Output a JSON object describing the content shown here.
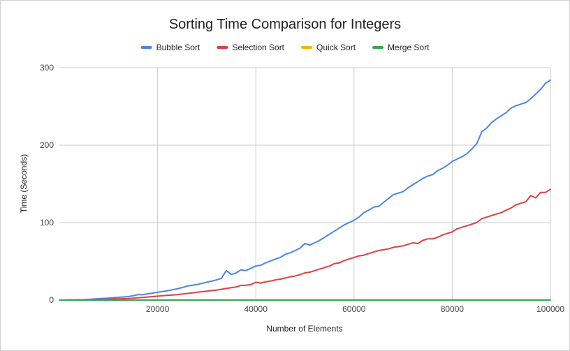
{
  "chart_data": {
    "type": "line",
    "title": "Sorting Time Comparison for Integers",
    "xlabel": "Number of Elements",
    "ylabel": "Time (Seconds)",
    "xlim": [
      0,
      100000
    ],
    "ylim": [
      0,
      300
    ],
    "xticks": [
      20000,
      40000,
      60000,
      80000,
      100000
    ],
    "yticks": [
      0,
      100,
      200,
      300
    ],
    "grid": true,
    "legend_position": "top",
    "series": [
      {
        "name": "Bubble Sort",
        "color": "#4a86e8",
        "points": [
          [
            0,
            0
          ],
          [
            5000,
            0.5
          ],
          [
            8000,
            1.8
          ],
          [
            10000,
            2.5
          ],
          [
            12000,
            3.5
          ],
          [
            14000,
            4.5
          ],
          [
            15000,
            5.5
          ],
          [
            16000,
            7
          ],
          [
            17000,
            7
          ],
          [
            18000,
            8
          ],
          [
            20000,
            10
          ],
          [
            22000,
            12
          ],
          [
            24000,
            14.5
          ],
          [
            25000,
            16
          ],
          [
            26000,
            18
          ],
          [
            27000,
            19
          ],
          [
            28000,
            20
          ],
          [
            30000,
            23
          ],
          [
            32000,
            26
          ],
          [
            33000,
            28
          ],
          [
            34000,
            38
          ],
          [
            35000,
            33
          ],
          [
            36000,
            35
          ],
          [
            37000,
            39
          ],
          [
            38000,
            38
          ],
          [
            40000,
            44
          ],
          [
            41000,
            45
          ],
          [
            42000,
            48
          ],
          [
            44000,
            53
          ],
          [
            45000,
            55
          ],
          [
            46000,
            59
          ],
          [
            47000,
            61
          ],
          [
            48000,
            64
          ],
          [
            49000,
            67
          ],
          [
            50000,
            73
          ],
          [
            51000,
            71
          ],
          [
            52000,
            74
          ],
          [
            53000,
            77
          ],
          [
            54000,
            81
          ],
          [
            55000,
            85
          ],
          [
            56000,
            89
          ],
          [
            57000,
            93
          ],
          [
            58000,
            97
          ],
          [
            59000,
            100
          ],
          [
            60000,
            103
          ],
          [
            61000,
            107
          ],
          [
            62000,
            113
          ],
          [
            63000,
            116
          ],
          [
            64000,
            120
          ],
          [
            65000,
            121
          ],
          [
            66000,
            126
          ],
          [
            67000,
            131
          ],
          [
            68000,
            136
          ],
          [
            69000,
            138
          ],
          [
            70000,
            140
          ],
          [
            71000,
            145
          ],
          [
            72000,
            149
          ],
          [
            73000,
            153
          ],
          [
            74000,
            157
          ],
          [
            75000,
            160
          ],
          [
            76000,
            162
          ],
          [
            77000,
            167
          ],
          [
            78000,
            170
          ],
          [
            79000,
            174
          ],
          [
            80000,
            179
          ],
          [
            81000,
            182
          ],
          [
            82000,
            185
          ],
          [
            83000,
            189
          ],
          [
            84000,
            195
          ],
          [
            85000,
            202
          ],
          [
            86000,
            217
          ],
          [
            87000,
            222
          ],
          [
            88000,
            229
          ],
          [
            89000,
            234
          ],
          [
            90000,
            238
          ],
          [
            91000,
            242
          ],
          [
            92000,
            248
          ],
          [
            93000,
            251
          ],
          [
            94000,
            253
          ],
          [
            95000,
            255
          ],
          [
            96000,
            260
          ],
          [
            97000,
            266
          ],
          [
            98000,
            272
          ],
          [
            99000,
            280
          ],
          [
            100000,
            284
          ]
        ]
      },
      {
        "name": "Selection Sort",
        "color": "#e04040",
        "points": [
          [
            0,
            0
          ],
          [
            5000,
            0.2
          ],
          [
            10000,
            1
          ],
          [
            12000,
            1.5
          ],
          [
            14000,
            2
          ],
          [
            16000,
            3
          ],
          [
            18000,
            4
          ],
          [
            20000,
            5
          ],
          [
            22000,
            6
          ],
          [
            24000,
            7
          ],
          [
            26000,
            8.5
          ],
          [
            28000,
            10
          ],
          [
            30000,
            11.5
          ],
          [
            32000,
            13
          ],
          [
            34000,
            15
          ],
          [
            36000,
            17
          ],
          [
            37000,
            19
          ],
          [
            38000,
            19
          ],
          [
            39000,
            20
          ],
          [
            40000,
            23
          ],
          [
            41000,
            22
          ],
          [
            42000,
            23.5
          ],
          [
            43000,
            24.5
          ],
          [
            44000,
            26
          ],
          [
            45000,
            27
          ],
          [
            46000,
            28.5
          ],
          [
            47000,
            30
          ],
          [
            48000,
            31
          ],
          [
            49000,
            33
          ],
          [
            50000,
            35
          ],
          [
            51000,
            36
          ],
          [
            52000,
            38
          ],
          [
            53000,
            40
          ],
          [
            54000,
            42
          ],
          [
            55000,
            44
          ],
          [
            56000,
            47
          ],
          [
            57000,
            48
          ],
          [
            58000,
            51
          ],
          [
            59000,
            53
          ],
          [
            60000,
            55
          ],
          [
            61000,
            57
          ],
          [
            62000,
            58
          ],
          [
            63000,
            60
          ],
          [
            64000,
            62
          ],
          [
            65000,
            64
          ],
          [
            66000,
            65
          ],
          [
            67000,
            66
          ],
          [
            68000,
            68
          ],
          [
            69000,
            69
          ],
          [
            70000,
            70
          ],
          [
            71000,
            72
          ],
          [
            72000,
            74
          ],
          [
            73000,
            73
          ],
          [
            74000,
            77
          ],
          [
            75000,
            79
          ],
          [
            76000,
            79
          ],
          [
            77000,
            81
          ],
          [
            78000,
            84
          ],
          [
            79000,
            86
          ],
          [
            80000,
            88
          ],
          [
            81000,
            92
          ],
          [
            82000,
            94
          ],
          [
            83000,
            96
          ],
          [
            84000,
            98
          ],
          [
            85000,
            100
          ],
          [
            86000,
            105
          ],
          [
            87000,
            107
          ],
          [
            88000,
            109
          ],
          [
            89000,
            111
          ],
          [
            90000,
            113
          ],
          [
            91000,
            116
          ],
          [
            92000,
            119
          ],
          [
            93000,
            123
          ],
          [
            94000,
            125
          ],
          [
            95000,
            127
          ],
          [
            96000,
            135
          ],
          [
            97000,
            132
          ],
          [
            98000,
            139
          ],
          [
            99000,
            139
          ],
          [
            100000,
            143
          ]
        ]
      },
      {
        "name": "Quick Sort",
        "color": "#f4b400",
        "points": [
          [
            0,
            0
          ],
          [
            20000,
            0
          ],
          [
            40000,
            0
          ],
          [
            60000,
            0
          ],
          [
            80000,
            0
          ],
          [
            100000,
            0
          ]
        ]
      },
      {
        "name": "Merge Sort",
        "color": "#34a853",
        "points": [
          [
            0,
            0
          ],
          [
            20000,
            0
          ],
          [
            40000,
            0
          ],
          [
            60000,
            0
          ],
          [
            80000,
            0
          ],
          [
            100000,
            0
          ]
        ]
      }
    ]
  }
}
